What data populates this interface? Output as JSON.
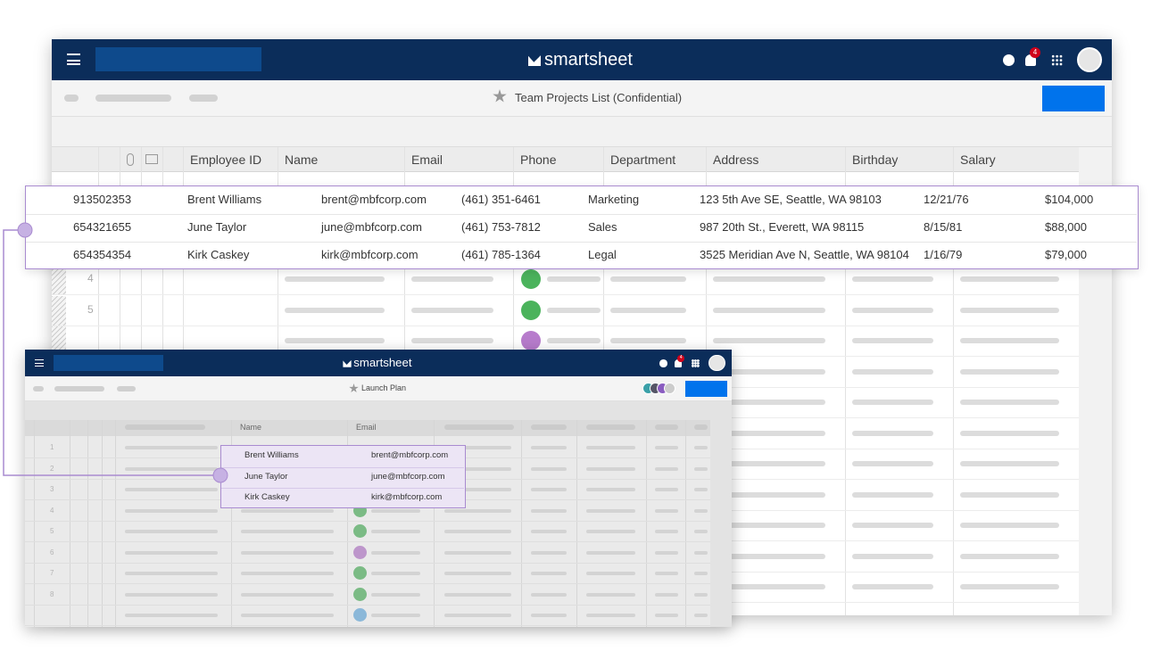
{
  "main": {
    "logo": "smartsheet",
    "badge": "4",
    "sheet_title": "Team Projects List (Confidential)",
    "columns": [
      "Employee ID",
      "Name",
      "Email",
      "Phone",
      "Department",
      "Address",
      "Birthday",
      "Salary"
    ],
    "row_numbers": [
      "4",
      "5"
    ]
  },
  "highlight": {
    "rows": [
      [
        "913502353",
        "Brent Williams",
        "brent@mbfcorp.com",
        "(461) 351-6461",
        "Marketing",
        "123 5th Ave SE, Seattle, WA 98103",
        "12/21/76",
        "$104,000"
      ],
      [
        "654321655",
        "June Taylor",
        "june@mbfcorp.com",
        "(461) 753-7812",
        "Sales",
        "987 20th St., Everett, WA 98115",
        "8/15/81",
        "$88,000"
      ],
      [
        "654354354",
        "Kirk Caskey",
        "kirk@mbfcorp.com",
        "(461) 785-1364",
        "Legal",
        "3525 Meridian Ave N, Seattle, WA 98104",
        "1/16/79",
        "$79,000"
      ]
    ]
  },
  "mini": {
    "logo": "smartsheet",
    "badge": "4",
    "sheet_title": "Launch Plan",
    "columns": [
      "Name",
      "Email"
    ],
    "row_numbers": [
      "1",
      "2",
      "3",
      "4",
      "5",
      "6",
      "7",
      "8"
    ],
    "rows": [
      [
        "Brent Williams",
        "brent@mbfcorp.com"
      ],
      [
        "June Taylor",
        "june@mbfcorp.com"
      ],
      [
        "Kirk Caskey",
        "kirk@mbfcorp.com"
      ]
    ]
  }
}
